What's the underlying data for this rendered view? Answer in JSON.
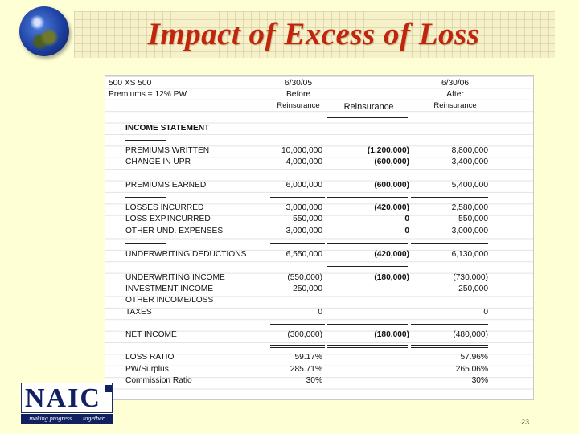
{
  "slide": {
    "title": "Impact of Excess of Loss",
    "page_number": "23",
    "logo": {
      "text": "NAIC",
      "tagline": "making progress . . . together"
    }
  },
  "sheet": {
    "top_left_1": "500 XS 500",
    "top_left_2": "Premiums = 12% PW",
    "date_before": "6/30/05",
    "date_after": "6/30/06",
    "before_line1": "Before",
    "before_line2": "Reinsurance",
    "reinsurance_header": "Reinsurance",
    "after_line1": "After",
    "after_line2": "Reinsurance",
    "section_header": "INCOME STATEMENT",
    "rows": [
      {
        "label": "PREMIUMS WRITTEN",
        "before": "10,000,000",
        "reins": "(1,200,000)",
        "after": "8,800,000"
      },
      {
        "label": "CHANGE IN UPR",
        "before": "4,000,000",
        "reins": "(600,000)",
        "after": "3,400,000"
      },
      {
        "label": "PREMIUMS EARNED",
        "before": "6,000,000",
        "reins": "(600,000)",
        "after": "5,400,000"
      },
      {
        "label": "LOSSES INCURRED",
        "before": "3,000,000",
        "reins": "(420,000)",
        "after": "2,580,000"
      },
      {
        "label": "LOSS EXP.INCURRED",
        "before": "550,000",
        "reins": "0",
        "after": "550,000"
      },
      {
        "label": "OTHER UND. EXPENSES",
        "before": "3,000,000",
        "reins": "0",
        "after": "3,000,000"
      },
      {
        "label": "UNDERWRITING DEDUCTIONS",
        "before": "6,550,000",
        "reins": "(420,000)",
        "after": "6,130,000"
      },
      {
        "label": "UNDERWRITING INCOME",
        "before": "(550,000)",
        "reins": "(180,000)",
        "after": "(730,000)"
      },
      {
        "label": "INVESTMENT INCOME",
        "before": "250,000",
        "reins": "",
        "after": "250,000"
      },
      {
        "label": "OTHER INCOME/LOSS",
        "before": "",
        "reins": "",
        "after": ""
      },
      {
        "label": "TAXES",
        "before": "0",
        "reins": "",
        "after": "0"
      },
      {
        "label": "NET INCOME",
        "before": "(300,000)",
        "reins": "(180,000)",
        "after": "(480,000)"
      },
      {
        "label": "LOSS RATIO",
        "before": "59.17%",
        "reins": "",
        "after": "57.96%"
      },
      {
        "label": "PW/Surplus",
        "before": "285.71%",
        "reins": "",
        "after": "265.06%"
      },
      {
        "label": "Commission Ratio",
        "before": "30%",
        "reins": "",
        "after": "30%"
      }
    ]
  }
}
